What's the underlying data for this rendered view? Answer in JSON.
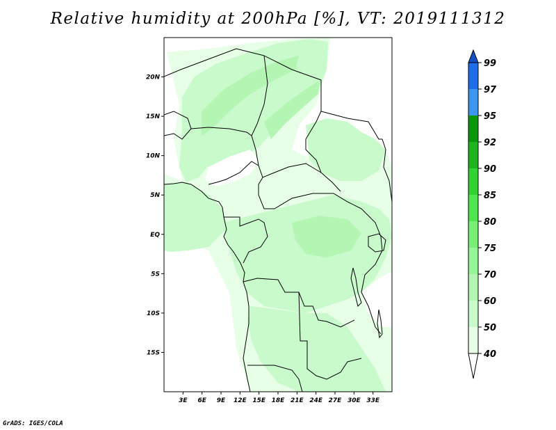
{
  "title": "Relative humidity at 200hPa [%], VT: 2019111312",
  "credit": "GrADS: IGES/COLA",
  "map": {
    "lon_range": [
      0,
      36
    ],
    "lat_range": [
      -20,
      25
    ],
    "x_ticks": [
      {
        "lon": 3,
        "label": "3E"
      },
      {
        "lon": 6,
        "label": "6E"
      },
      {
        "lon": 9,
        "label": "9E"
      },
      {
        "lon": 12,
        "label": "12E"
      },
      {
        "lon": 15,
        "label": "15E"
      },
      {
        "lon": 18,
        "label": "18E"
      },
      {
        "lon": 21,
        "label": "21E"
      },
      {
        "lon": 24,
        "label": "24E"
      },
      {
        "lon": 27,
        "label": "27E"
      },
      {
        "lon": 30,
        "label": "30E"
      },
      {
        "lon": 33,
        "label": "33E"
      }
    ],
    "y_ticks": [
      {
        "lat": 20,
        "label": "20N"
      },
      {
        "lat": 15,
        "label": "15N"
      },
      {
        "lat": 10,
        "label": "10N"
      },
      {
        "lat": 5,
        "label": "5N"
      },
      {
        "lat": 0,
        "label": "EQ"
      },
      {
        "lat": -5,
        "label": "5S"
      },
      {
        "lat": -10,
        "label": "10S"
      },
      {
        "lat": -15,
        "label": "15S"
      }
    ]
  },
  "colorbar": {
    "levels": [
      "40",
      "50",
      "60",
      "70",
      "75",
      "80",
      "85",
      "90",
      "92",
      "95",
      "97",
      "99"
    ],
    "colors": [
      "#ffffff",
      "#e6ffe6",
      "#c8facc",
      "#b4f5b4",
      "#96f596",
      "#78f078",
      "#50e650",
      "#32d232",
      "#1eb41e",
      "#0a960a",
      "#3c96f0",
      "#1e6ee6",
      "#1450c8"
    ]
  }
}
